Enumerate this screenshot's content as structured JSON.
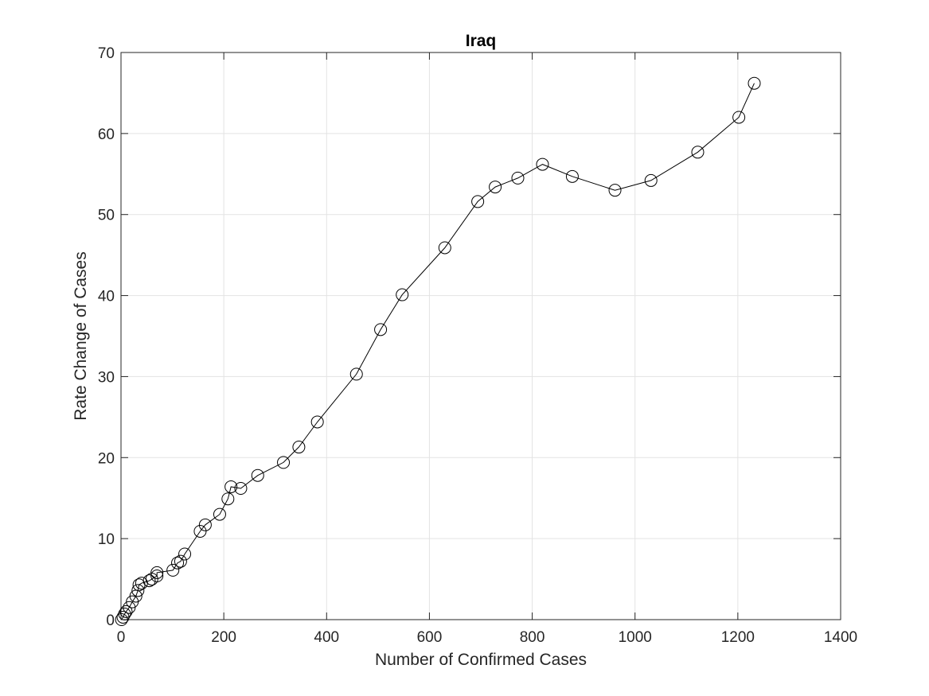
{
  "chart_data": {
    "type": "line",
    "title": "Iraq",
    "xlabel": "Number of Confirmed Cases",
    "ylabel": "Rate Change of Cases",
    "xlim": [
      0,
      1400
    ],
    "ylim": [
      0,
      70
    ],
    "xticks": [
      0,
      200,
      400,
      600,
      800,
      1000,
      1200,
      1400
    ],
    "yticks": [
      0,
      10,
      20,
      30,
      40,
      50,
      60,
      70
    ],
    "grid": true,
    "marker": "circle",
    "line_color": "#000000",
    "series": [
      {
        "x": [
          1,
          4,
          7,
          10,
          16,
          22,
          29,
          33,
          35,
          40,
          55,
          60,
          70,
          70,
          101,
          110,
          116,
          124,
          154,
          164,
          192,
          208,
          214,
          233,
          266,
          316,
          346,
          382,
          458,
          505,
          547,
          630,
          694,
          728,
          772,
          820,
          878,
          961,
          1031,
          1122,
          1202,
          1232
        ],
        "y": [
          0.0,
          0.3,
          0.7,
          1.0,
          1.5,
          2.2,
          2.9,
          3.6,
          4.3,
          4.5,
          4.8,
          5.0,
          5.4,
          5.8,
          6.1,
          7.0,
          7.2,
          8.1,
          10.9,
          11.7,
          13.0,
          14.9,
          16.4,
          16.2,
          17.8,
          19.4,
          21.3,
          24.4,
          30.3,
          35.8,
          40.1,
          45.9,
          51.6,
          53.4,
          54.5,
          56.2,
          54.7,
          53.0,
          54.2,
          57.7,
          62.0,
          66.2
        ]
      }
    ]
  }
}
